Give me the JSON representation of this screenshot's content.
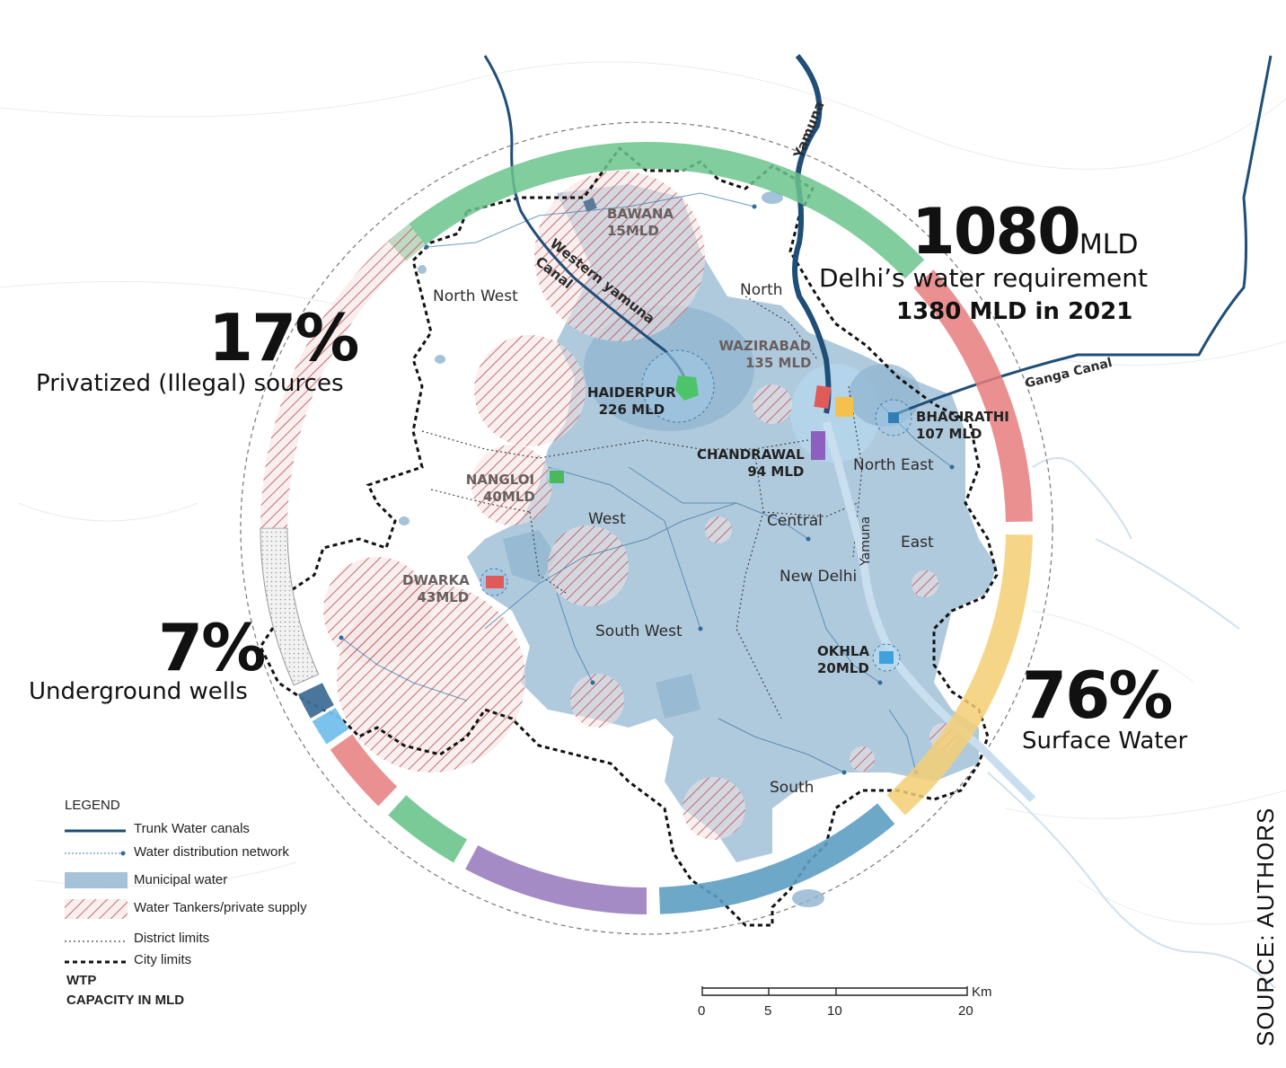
{
  "colors": {
    "municipal": "#8fb3cf",
    "tanker_hatch": "#b45050",
    "canal": "#1f4e79",
    "ring_green": "#6cc48c",
    "ring_red": "#e87d7d",
    "ring_yellow": "#f3cf74",
    "ring_purple": "#9b7ec0",
    "ring_blue": "#5e9fc2",
    "ring_private": "#c98a8a"
  },
  "stats": {
    "requirement_value": "1080",
    "requirement_unit": "MLD",
    "requirement_label": "Delhi’s water requirement",
    "requirement_2021": "1380 MLD in 2021",
    "privatized_pct": "17%",
    "privatized_label": "Privatized (Illegal) sources",
    "wells_pct": "7%",
    "wells_label": "Underground wells",
    "surface_pct": "76%",
    "surface_label": "Surface Water"
  },
  "districts": {
    "north_west": "North West",
    "north": "North",
    "north_east": "North East",
    "west": "West",
    "central": "Central",
    "east": "East",
    "new_delhi": "New Delhi",
    "south_west": "South West",
    "south": "South"
  },
  "waterways": {
    "yamuna_top": "Yamuna",
    "yamuna_mid": "Yamuna",
    "western_canal_1": "Western yamuna",
    "western_canal_2": "Canal",
    "ganga_canal": "Ganga Canal"
  },
  "wtp_plants": [
    {
      "name": "BAWANA",
      "capacity": "15MLD"
    },
    {
      "name": "WAZIRABAD",
      "capacity": "135 MLD"
    },
    {
      "name": "HAIDERPUR",
      "capacity": "226 MLD"
    },
    {
      "name": "BHAGIRATHI",
      "capacity": "107 MLD"
    },
    {
      "name": "CHANDRAWAL",
      "capacity": "94 MLD"
    },
    {
      "name": "NANGLOI",
      "capacity": "40MLD"
    },
    {
      "name": "DWARKA",
      "capacity": "43MLD"
    },
    {
      "name": "OKHLA",
      "capacity": "20MLD"
    }
  ],
  "legend": {
    "title": "LEGEND",
    "trunk": "Trunk Water canals",
    "distribution": "Water distribution network",
    "municipal": "Municipal water",
    "tankers": "Water Tankers/private supply",
    "district": "District limits",
    "city": "City limits",
    "wtp": "WTP",
    "capacity": "CAPACITY IN MLD"
  },
  "scale": {
    "unit": "Km",
    "ticks": [
      "0",
      "5",
      "10",
      "20"
    ]
  },
  "source": "SOURCE: AUTHORS"
}
